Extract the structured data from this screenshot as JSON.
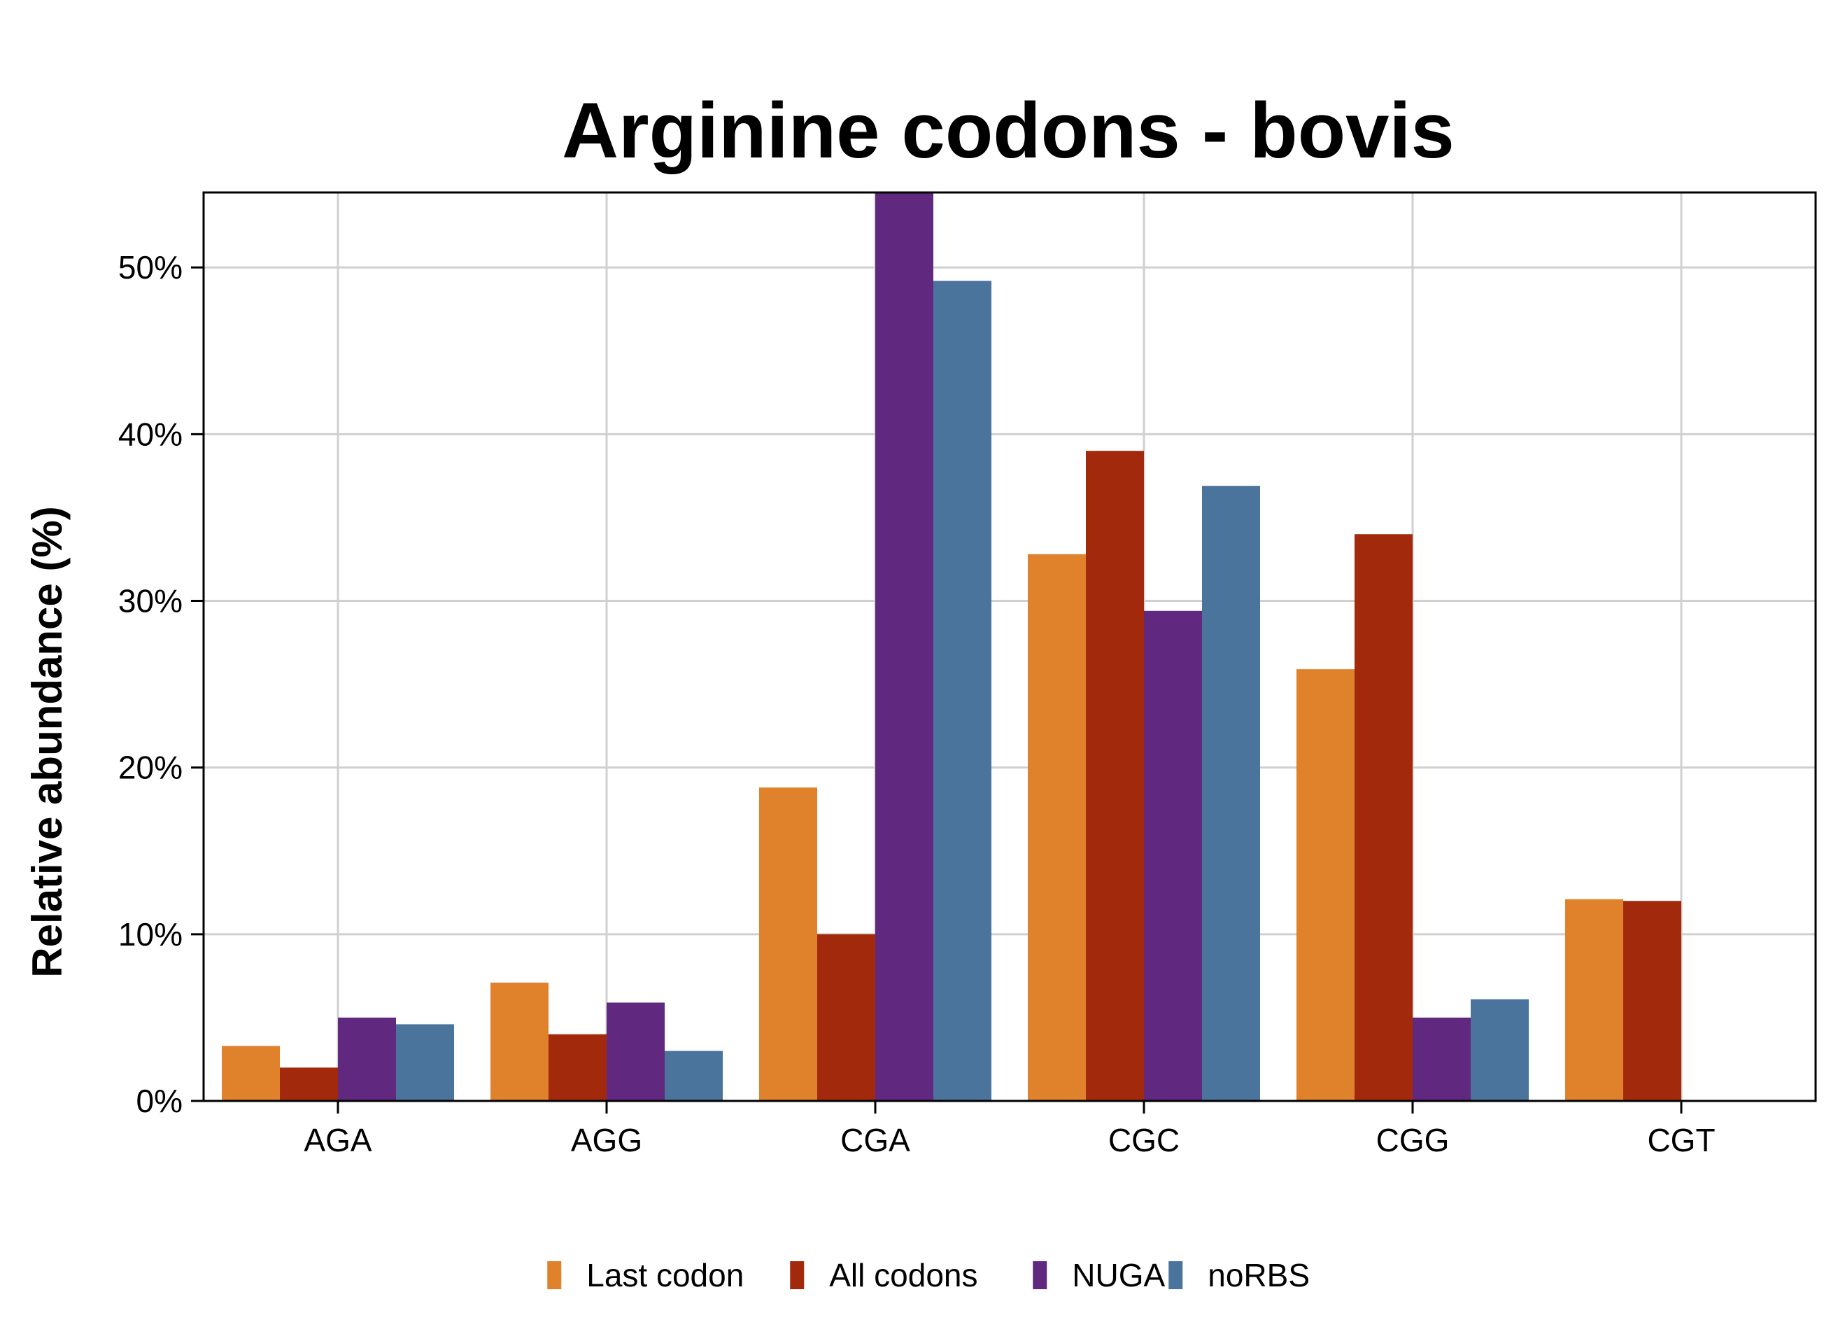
{
  "chart_data": {
    "type": "bar",
    "title": "Arginine codons - bovis",
    "xlabel": "",
    "ylabel": "Relative abundance (%)",
    "categories": [
      "AGA",
      "AGG",
      "CGA",
      "CGC",
      "CGG",
      "CGT"
    ],
    "series": [
      {
        "name": "Last codon",
        "color": "#E0812C",
        "values": [
          3.3,
          7.1,
          18.8,
          32.8,
          25.9,
          12.1
        ]
      },
      {
        "name": "All codons",
        "color": "#A3290C",
        "values": [
          2.0,
          4.0,
          10.0,
          39.0,
          34.0,
          12.0
        ]
      },
      {
        "name": "NUGA",
        "color": "#60287F",
        "values": [
          5.0,
          5.9,
          54.5,
          29.4,
          5.0,
          0
        ]
      },
      {
        "name": "noRBS",
        "color": "#4A749C",
        "values": [
          4.6,
          3.0,
          49.2,
          36.9,
          6.1,
          0
        ]
      }
    ],
    "yticks": [
      0,
      10,
      20,
      30,
      40,
      50
    ],
    "ytick_labels": [
      "0%",
      "10%",
      "20%",
      "30%",
      "40%",
      "50%"
    ],
    "ylim": [
      0,
      54.5
    ],
    "grid": true,
    "legend_position": "bottom"
  }
}
